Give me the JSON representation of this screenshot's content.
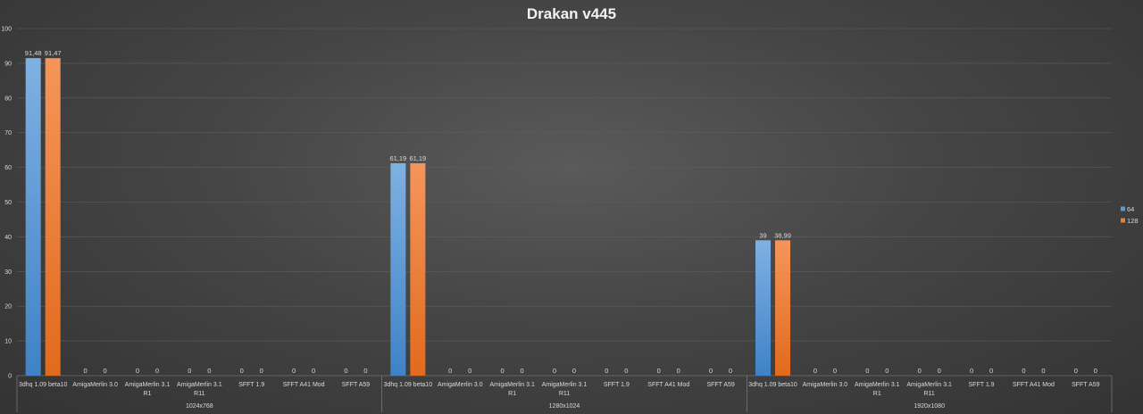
{
  "chart_data": {
    "type": "bar",
    "title": "Drakan v445",
    "ylim": [
      0,
      100
    ],
    "yticks": [
      0,
      10,
      20,
      30,
      40,
      50,
      60,
      70,
      80,
      90,
      100
    ],
    "grid": true,
    "legend_position": "right",
    "groups": [
      "1024x768",
      "1280x1024",
      "1920x1080"
    ],
    "categories": [
      "3dhq 1.09 beta10",
      "AmigaMerlin 3.0",
      "AmigaMerlin 3.1 R1",
      "AmigaMerlin 3.1 R11",
      "SFFT 1.9",
      "SFFT A41 Mod",
      "SFFT A59"
    ],
    "series": [
      {
        "name": "64",
        "color": "#5b9bd5",
        "values": [
          [
            91.48,
            0,
            0,
            0,
            0,
            0,
            0
          ],
          [
            61.19,
            0,
            0,
            0,
            0,
            0,
            0
          ],
          [
            39,
            0,
            0,
            0,
            0,
            0,
            0
          ]
        ],
        "labels": [
          [
            "91,48",
            "0",
            "0",
            "0",
            "0",
            "0",
            "0"
          ],
          [
            "61,19",
            "0",
            "0",
            "0",
            "0",
            "0",
            "0"
          ],
          [
            "39",
            "0",
            "0",
            "0",
            "0",
            "0",
            "0"
          ]
        ]
      },
      {
        "name": "128",
        "color": "#ed7d31",
        "values": [
          [
            91.47,
            0,
            0,
            0,
            0,
            0,
            0
          ],
          [
            61.19,
            0,
            0,
            0,
            0,
            0,
            0
          ],
          [
            38.99,
            0,
            0,
            0,
            0,
            0,
            0
          ]
        ],
        "labels": [
          [
            "91,47",
            "0",
            "0",
            "0",
            "0",
            "0",
            "0"
          ],
          [
            "61,19",
            "0",
            "0",
            "0",
            "0",
            "0",
            "0"
          ],
          [
            "38,99",
            "0",
            "0",
            "0",
            "0",
            "0",
            "0"
          ]
        ]
      }
    ]
  }
}
